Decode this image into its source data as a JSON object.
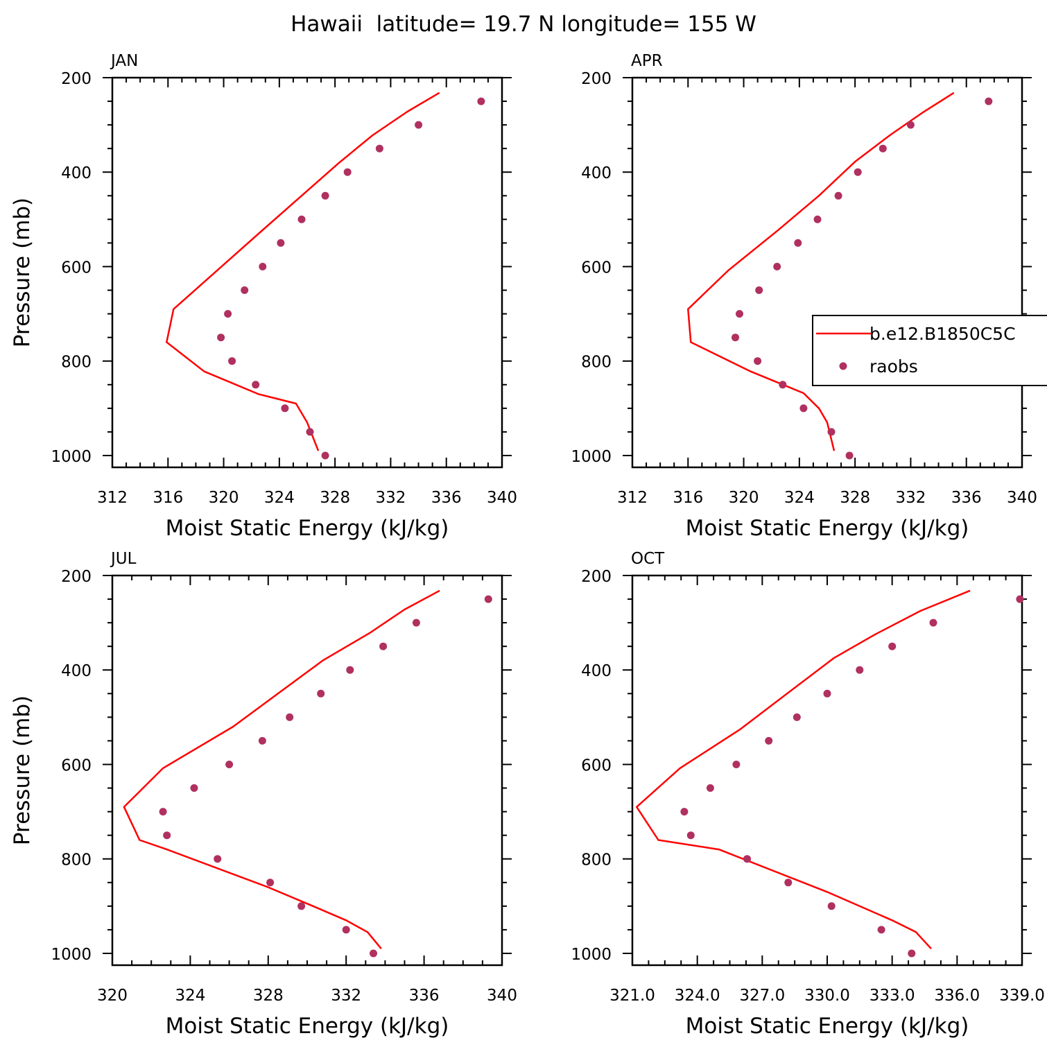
{
  "title": "Hawaii  latitude= 19.7 N longitude= 155 W",
  "colors": {
    "model": "#ff0000",
    "obs": "#b03060"
  },
  "legend": {
    "entries": [
      "b.e12.B1850C5C",
      "raobs"
    ],
    "panel": "APR",
    "placement": "right"
  },
  "chart_data": [
    {
      "type": "line",
      "panel_label": "JAN",
      "xlabel": "Moist Static Energy (kJ/kg)",
      "ylabel": "Pressure (mb)",
      "xlim": [
        312,
        340
      ],
      "ylim": [
        1025,
        200
      ],
      "xticks": [
        "312",
        "316",
        "320",
        "324",
        "328",
        "332",
        "336",
        "340"
      ],
      "yticks": [
        "200",
        "400",
        "600",
        "800",
        "1000"
      ],
      "series": [
        {
          "name": "b.e12.B1850C5C",
          "kind": "line",
          "x": [
            335.5,
            333.2,
            330.7,
            328.3,
            322.9,
            316.4,
            315.9,
            318.6,
            322.5,
            325.2,
            326.0,
            326.8
          ],
          "y": [
            232,
            272,
            322,
            380,
            520,
            690,
            760,
            822,
            870,
            890,
            930,
            990
          ]
        },
        {
          "name": "raobs",
          "kind": "scatter",
          "x": [
            338.5,
            334.0,
            331.2,
            328.9,
            327.3,
            325.6,
            324.1,
            322.8,
            321.5,
            320.3,
            319.8,
            320.6,
            322.3,
            324.4,
            326.2,
            327.3
          ],
          "y": [
            250,
            300,
            350,
            400,
            450,
            500,
            550,
            600,
            650,
            700,
            750,
            800,
            850,
            900,
            950,
            1000
          ]
        }
      ]
    },
    {
      "type": "line",
      "panel_label": "APR",
      "xlabel": "Moist Static Energy (kJ/kg)",
      "ylabel": "",
      "xlim": [
        312,
        340
      ],
      "ylim": [
        1025,
        200
      ],
      "xticks": [
        "312",
        "316",
        "320",
        "324",
        "328",
        "332",
        "336",
        "340"
      ],
      "yticks": [
        "200",
        "400",
        "600",
        "800",
        "1000"
      ],
      "series": [
        {
          "name": "b.e12.B1850C5C",
          "kind": "line",
          "x": [
            335.1,
            332.8,
            330.5,
            328.0,
            325.4,
            322.5,
            318.9,
            316.0,
            316.2,
            320.5,
            324.3,
            325.4,
            326.0,
            326.5
          ],
          "y": [
            232,
            275,
            322,
            378,
            450,
            522,
            608,
            690,
            760,
            822,
            868,
            900,
            930,
            990
          ]
        },
        {
          "name": "raobs",
          "kind": "scatter",
          "x": [
            337.6,
            332.0,
            330.0,
            328.2,
            326.8,
            325.3,
            323.9,
            322.4,
            321.1,
            319.7,
            319.4,
            321.0,
            322.8,
            324.3,
            326.3,
            327.6
          ],
          "y": [
            250,
            300,
            350,
            400,
            450,
            500,
            550,
            600,
            650,
            700,
            750,
            800,
            850,
            900,
            950,
            1000
          ]
        }
      ]
    },
    {
      "type": "line",
      "panel_label": "JUL",
      "xlabel": "Moist Static Energy (kJ/kg)",
      "ylabel": "Pressure (mb)",
      "xlim": [
        320,
        340
      ],
      "ylim": [
        1025,
        200
      ],
      "xticks": [
        "320",
        "324",
        "328",
        "332",
        "336",
        "340"
      ],
      "yticks": [
        "200",
        "400",
        "600",
        "800",
        "1000"
      ],
      "series": [
        {
          "name": "b.e12.B1850C5C",
          "kind": "line",
          "x": [
            336.8,
            335.0,
            333.2,
            330.8,
            326.2,
            322.6,
            320.6,
            321.4,
            322.8,
            328.0,
            330.3,
            332.0,
            333.1,
            333.8
          ],
          "y": [
            232,
            272,
            322,
            380,
            520,
            608,
            690,
            760,
            780,
            860,
            900,
            930,
            955,
            990
          ]
        },
        {
          "name": "raobs",
          "kind": "scatter",
          "x": [
            339.3,
            335.6,
            333.9,
            332.2,
            330.7,
            329.1,
            327.7,
            326.0,
            324.2,
            322.6,
            322.8,
            325.4,
            328.1,
            329.7,
            332.0,
            333.4
          ],
          "y": [
            250,
            300,
            350,
            400,
            450,
            500,
            550,
            600,
            650,
            700,
            750,
            800,
            850,
            900,
            950,
            1000
          ]
        }
      ]
    },
    {
      "type": "line",
      "panel_label": "OCT",
      "xlabel": "Moist Static Energy (kJ/kg)",
      "ylabel": "",
      "xlim": [
        321.0,
        339.0
      ],
      "ylim": [
        1025,
        200
      ],
      "xticks": [
        "321.0",
        "324.0",
        "327.0",
        "330.0",
        "333.0",
        "336.0",
        "339.0"
      ],
      "yticks": [
        "200",
        "400",
        "600",
        "800",
        "1000"
      ],
      "series": [
        {
          "name": "b.e12.B1850C5C",
          "kind": "line",
          "x": [
            336.6,
            334.3,
            332.2,
            330.3,
            328.0,
            326.0,
            323.2,
            321.2,
            322.2,
            325.0,
            330.0,
            333.0,
            334.1,
            334.8
          ],
          "y": [
            232,
            275,
            325,
            375,
            455,
            525,
            608,
            690,
            760,
            780,
            870,
            930,
            955,
            990
          ]
        },
        {
          "name": "raobs",
          "kind": "scatter",
          "x": [
            338.9,
            334.9,
            333.0,
            331.5,
            330.0,
            328.6,
            327.3,
            325.8,
            324.6,
            323.4,
            323.7,
            326.3,
            328.2,
            330.2,
            332.5,
            333.9
          ],
          "y": [
            250,
            300,
            350,
            400,
            450,
            500,
            550,
            600,
            650,
            700,
            750,
            800,
            850,
            900,
            950,
            1000
          ]
        }
      ]
    }
  ]
}
